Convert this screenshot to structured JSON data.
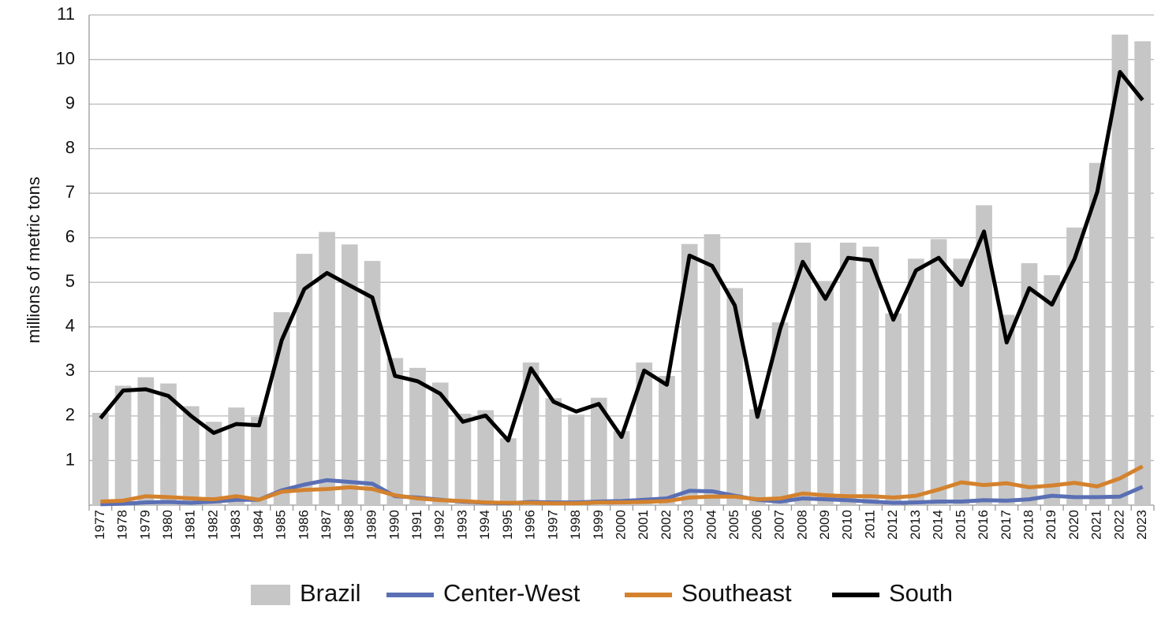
{
  "chart_data": {
    "type": "bar",
    "y_label": "millions of metric tons",
    "categories": [
      "1977",
      "1978",
      "1979",
      "1980",
      "1981",
      "1982",
      "1983",
      "1984",
      "1985",
      "1986",
      "1987",
      "1988",
      "1989",
      "1990",
      "1991",
      "1992",
      "1993",
      "1994",
      "1995",
      "1996",
      "1997",
      "1998",
      "1999",
      "2000",
      "2001",
      "2002",
      "2003",
      "2004",
      "2005",
      "2006",
      "2007",
      "2008",
      "2009",
      "2010",
      "2011",
      "2012",
      "2013",
      "2014",
      "2015",
      "2016",
      "2017",
      "2018",
      "2019",
      "2020",
      "2021",
      "2022",
      "2023"
    ],
    "series": [
      {
        "name": "Brazil",
        "type": "bar",
        "color": "#c6c6c6",
        "values": [
          2.07,
          2.68,
          2.87,
          2.73,
          2.22,
          1.87,
          2.19,
          1.98,
          4.33,
          5.64,
          6.13,
          5.85,
          5.48,
          3.3,
          3.08,
          2.75,
          2.05,
          2.13,
          1.5,
          3.2,
          2.4,
          2.03,
          2.41,
          1.66,
          3.2,
          2.9,
          5.86,
          6.08,
          4.87,
          2.15,
          4.1,
          5.89,
          5.03,
          5.89,
          5.8,
          4.3,
          5.53,
          5.97,
          5.53,
          6.73,
          4.27,
          5.43,
          5.16,
          6.23,
          7.68,
          10.56,
          10.41
        ]
      },
      {
        "name": "Center-West",
        "type": "line",
        "color": "#5a6fb4",
        "values": [
          0.02,
          0.03,
          0.06,
          0.07,
          0.05,
          0.08,
          0.12,
          0.12,
          0.33,
          0.46,
          0.56,
          0.52,
          0.48,
          0.2,
          0.17,
          0.12,
          0.08,
          0.05,
          0.04,
          0.07,
          0.06,
          0.06,
          0.08,
          0.09,
          0.12,
          0.15,
          0.32,
          0.31,
          0.21,
          0.12,
          0.08,
          0.15,
          0.13,
          0.11,
          0.08,
          0.05,
          0.06,
          0.08,
          0.08,
          0.11,
          0.1,
          0.13,
          0.21,
          0.18,
          0.18,
          0.19,
          0.41
        ]
      },
      {
        "name": "Southeast",
        "type": "line",
        "color": "#d4822e",
        "values": [
          0.08,
          0.1,
          0.2,
          0.18,
          0.15,
          0.13,
          0.2,
          0.12,
          0.3,
          0.34,
          0.36,
          0.4,
          0.36,
          0.22,
          0.15,
          0.11,
          0.09,
          0.06,
          0.05,
          0.05,
          0.04,
          0.04,
          0.06,
          0.06,
          0.07,
          0.09,
          0.17,
          0.19,
          0.19,
          0.13,
          0.15,
          0.26,
          0.22,
          0.2,
          0.2,
          0.17,
          0.21,
          0.35,
          0.51,
          0.45,
          0.49,
          0.4,
          0.44,
          0.5,
          0.42,
          0.6,
          0.87
        ]
      },
      {
        "name": "South",
        "type": "line",
        "color": "#000000",
        "values": [
          1.95,
          2.57,
          2.6,
          2.45,
          2.0,
          1.62,
          1.82,
          1.79,
          3.7,
          4.85,
          5.21,
          4.93,
          4.66,
          2.9,
          2.78,
          2.5,
          1.87,
          2.01,
          1.45,
          3.07,
          2.32,
          2.1,
          2.27,
          1.53,
          3.02,
          2.7,
          5.6,
          5.37,
          4.48,
          1.98,
          3.95,
          5.46,
          4.63,
          5.55,
          5.49,
          4.16,
          5.27,
          5.55,
          4.94,
          6.14,
          3.65,
          4.87,
          4.5,
          5.53,
          7.03,
          9.72,
          9.09
        ]
      }
    ],
    "ylim": [
      0,
      11
    ],
    "yticks": [
      1,
      2,
      3,
      4,
      5,
      6,
      7,
      8,
      9,
      10,
      11
    ],
    "grid": true,
    "legend": "bottom"
  }
}
